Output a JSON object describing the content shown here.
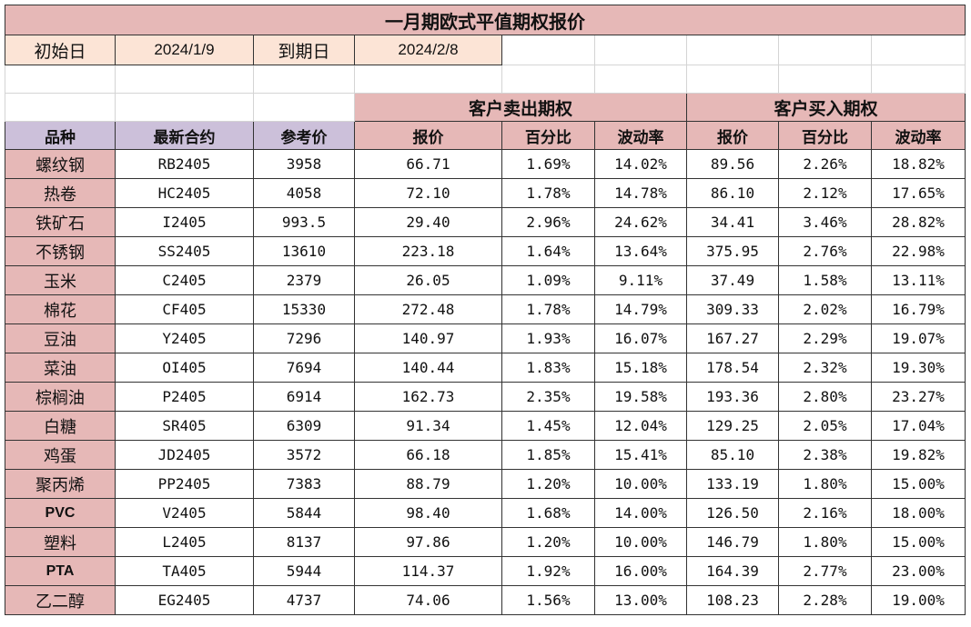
{
  "title": "一月期欧式平值期权报价",
  "meta": {
    "start_label": "初始日",
    "start_value": "2024/1/9",
    "expiry_label": "到期日",
    "expiry_value": "2024/2/8"
  },
  "groups": {
    "client_sell": "客户卖出期权",
    "client_buy": "客户买入期权"
  },
  "headers": [
    "品种",
    "最新合约",
    "参考价",
    "报价",
    "百分比",
    "波动率",
    "报价",
    "百分比",
    "波动率"
  ],
  "rows": [
    [
      "螺纹钢",
      "RB2405",
      "3958",
      "66.71",
      "1.69%",
      "14.02%",
      "89.56",
      "2.26%",
      "18.82%"
    ],
    [
      "热卷",
      "HC2405",
      "4058",
      "72.10",
      "1.78%",
      "14.78%",
      "86.10",
      "2.12%",
      "17.65%"
    ],
    [
      "铁矿石",
      "I2405",
      "993.5",
      "29.40",
      "2.96%",
      "24.62%",
      "34.41",
      "3.46%",
      "28.82%"
    ],
    [
      "不锈钢",
      "SS2405",
      "13610",
      "223.18",
      "1.64%",
      "13.64%",
      "375.95",
      "2.76%",
      "22.98%"
    ],
    [
      "玉米",
      "C2405",
      "2379",
      "26.05",
      "1.09%",
      "9.11%",
      "37.49",
      "1.58%",
      "13.11%"
    ],
    [
      "棉花",
      "CF405",
      "15330",
      "272.48",
      "1.78%",
      "14.79%",
      "309.33",
      "2.02%",
      "16.79%"
    ],
    [
      "豆油",
      "Y2405",
      "7296",
      "140.97",
      "1.93%",
      "16.07%",
      "167.27",
      "2.29%",
      "19.07%"
    ],
    [
      "菜油",
      "OI405",
      "7694",
      "140.44",
      "1.83%",
      "15.18%",
      "178.54",
      "2.32%",
      "19.30%"
    ],
    [
      "棕榈油",
      "P2405",
      "6914",
      "162.73",
      "2.35%",
      "19.58%",
      "193.36",
      "2.80%",
      "23.27%"
    ],
    [
      "白糖",
      "SR405",
      "6309",
      "91.34",
      "1.45%",
      "12.04%",
      "129.25",
      "2.05%",
      "17.04%"
    ],
    [
      "鸡蛋",
      "JD2405",
      "3572",
      "66.18",
      "1.85%",
      "15.41%",
      "85.10",
      "2.38%",
      "19.82%"
    ],
    [
      "聚丙烯",
      "PP2405",
      "7383",
      "88.79",
      "1.20%",
      "10.00%",
      "133.19",
      "1.80%",
      "15.00%"
    ],
    [
      "PVC",
      "V2405",
      "5844",
      "98.40",
      "1.68%",
      "14.00%",
      "126.50",
      "2.16%",
      "18.00%"
    ],
    [
      "塑料",
      "L2405",
      "8137",
      "97.86",
      "1.20%",
      "10.00%",
      "146.79",
      "1.80%",
      "15.00%"
    ],
    [
      "PTA",
      "TA405",
      "5944",
      "114.37",
      "1.92%",
      "16.00%",
      "164.39",
      "2.77%",
      "23.00%"
    ],
    [
      "乙二醇",
      "EG2405",
      "4737",
      "74.06",
      "1.56%",
      "13.00%",
      "108.23",
      "2.28%",
      "19.00%"
    ]
  ]
}
